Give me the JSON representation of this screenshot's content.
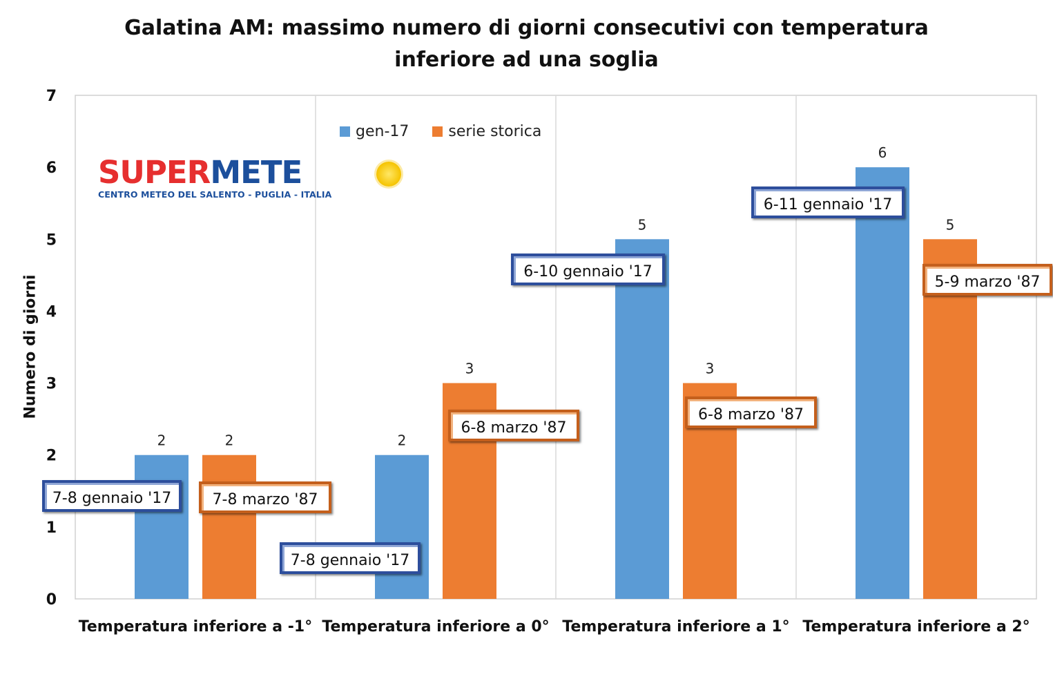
{
  "chart_data": {
    "type": "bar",
    "title_line1": "Galatina AM: massimo numero di giorni consecutivi con temperatura",
    "title_line2": "inferiore ad una soglia",
    "xlabel": "",
    "ylabel": "Numero di giorni",
    "ylim": [
      0,
      7
    ],
    "yticks": [
      "0",
      "1",
      "2",
      "3",
      "4",
      "5",
      "6",
      "7"
    ],
    "grid": "vertical category separators",
    "legend_position": "top",
    "categories": [
      "Temperatura inferiore a -1°",
      "Temperatura inferiore a 0°",
      "Temperatura inferiore a 1°",
      "Temperatura inferiore a 2°"
    ],
    "series": [
      {
        "name": "gen-17",
        "color": "#5b9bd5",
        "values": [
          2,
          2,
          5,
          6
        ],
        "data_labels": [
          "2",
          "2",
          "5",
          "6"
        ],
        "annotations": [
          "7-8 gennaio '17",
          "7-8 gennaio '17",
          "6-10 gennaio '17",
          "6-11 gennaio '17"
        ]
      },
      {
        "name": "serie storica",
        "color": "#ed7d31",
        "values": [
          2,
          3,
          3,
          5
        ],
        "data_labels": [
          "2",
          "3",
          "3",
          "5"
        ],
        "annotations": [
          "7-8 marzo '87",
          "6-8 marzo '87",
          "6-8 marzo '87",
          "5-9 marzo '87"
        ]
      }
    ]
  },
  "logo": {
    "word_red": "SUPER",
    "word_blue": "METE",
    "subtitle": "CENTRO METEO DEL SALENTO - PUGLIA - ITALIA",
    "sun_color": "#f5c300"
  }
}
